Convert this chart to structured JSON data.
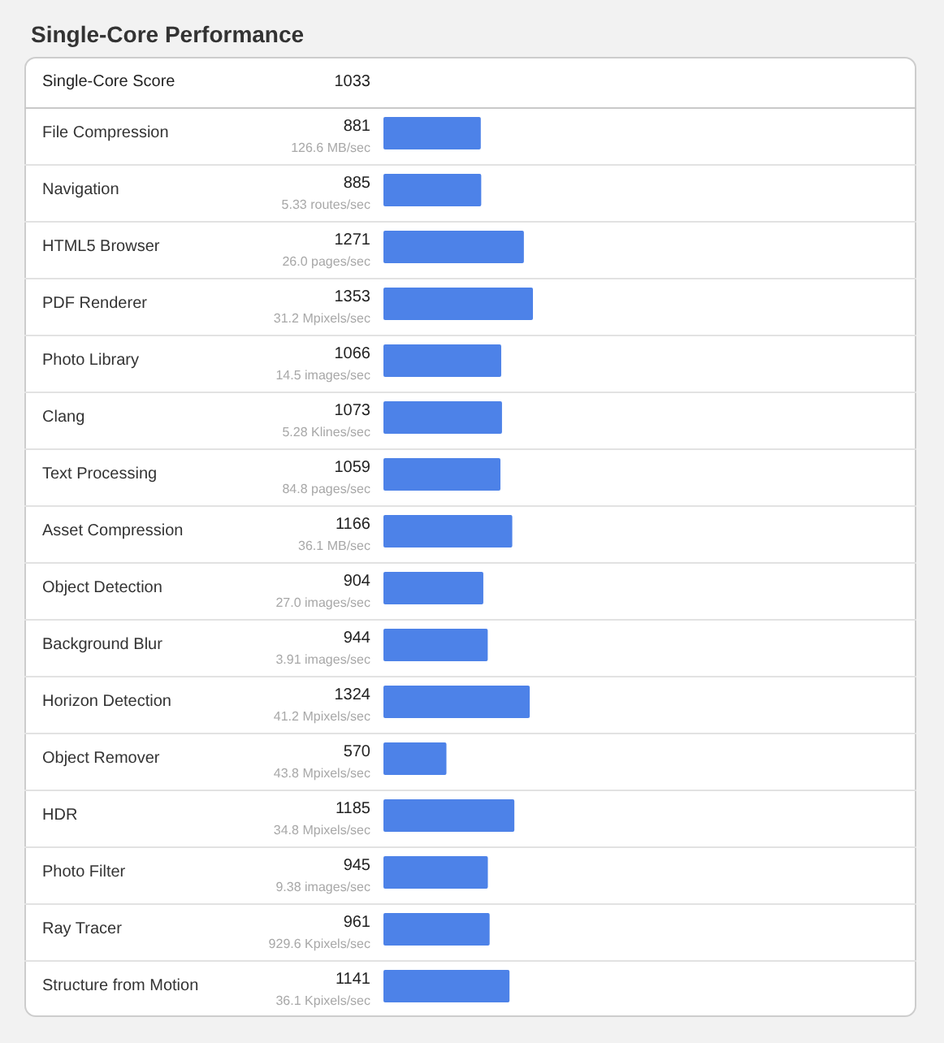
{
  "chart_data": {
    "type": "bar",
    "orientation": "horizontal",
    "title": "Single-Core Performance",
    "annotations": [
      "Single-Core Score",
      "1033",
      "126.6 MB/sec",
      "5.33 routes/sec",
      "26.0 pages/sec",
      "31.2 Mpixels/sec",
      "14.5 images/sec",
      "5.28 Klines/sec",
      "84.8 pages/sec",
      "36.1 MB/sec",
      "27.0 images/sec",
      "3.91 images/sec",
      "41.2 Mpixels/sec",
      "43.8 Mpixels/sec",
      "34.8 Mpixels/sec",
      "9.38 images/sec",
      "929.6 Kpixels/sec",
      "36.1 Kpixels/sec"
    ],
    "categories": [
      "File Compression",
      "Navigation",
      "HTML5 Browser",
      "PDF Renderer",
      "Photo Library",
      "Clang",
      "Text Processing",
      "Asset Compression",
      "Object Detection",
      "Background Blur",
      "Horizon Detection",
      "Object Remover",
      "HDR",
      "Photo Filter",
      "Ray Tracer",
      "Structure from Motion"
    ],
    "values": [
      881,
      885,
      1271,
      1353,
      1066,
      1073,
      1059,
      1166,
      904,
      944,
      1324,
      570,
      1185,
      945,
      961,
      1141
    ],
    "data_labels": true,
    "color": "#4d82e8",
    "grid": "y",
    "tick_labels": "y"
  }
}
